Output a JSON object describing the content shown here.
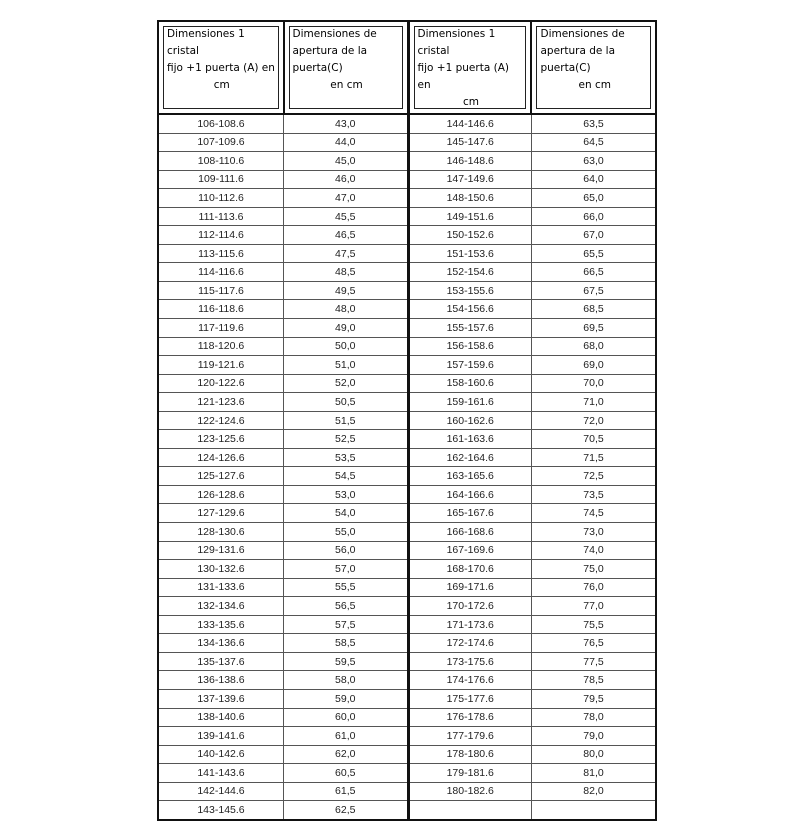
{
  "headers": [
    [
      "Dimensiones 1 cristal",
      "fijo +1 puerta (A) en",
      "cm"
    ],
    [
      "Dimensiones de",
      "apertura de la puerta(C)",
      "en cm"
    ],
    [
      "Dimensiones 1 cristal",
      "fijo +1 puerta (A) en",
      "cm"
    ],
    [
      "Dimensiones de",
      "apertura de la puerta(C)",
      "en cm"
    ]
  ],
  "left_rows": [
    [
      "106-108.6",
      "43,0"
    ],
    [
      "107-109.6",
      "44,0"
    ],
    [
      "108-110.6",
      "45,0"
    ],
    [
      "109-111.6",
      "46,0"
    ],
    [
      "110-112.6",
      "47,0"
    ],
    [
      "111-113.6",
      "45,5"
    ],
    [
      "112-114.6",
      "46,5"
    ],
    [
      "113-115.6",
      "47,5"
    ],
    [
      "114-116.6",
      "48,5"
    ],
    [
      "115-117.6",
      "49,5"
    ],
    [
      "116-118.6",
      "48,0"
    ],
    [
      "117-119.6",
      "49,0"
    ],
    [
      "118-120.6",
      "50,0"
    ],
    [
      "119-121.6",
      "51,0"
    ],
    [
      "120-122.6",
      "52,0"
    ],
    [
      "121-123.6",
      "50,5"
    ],
    [
      "122-124.6",
      "51,5"
    ],
    [
      "123-125.6",
      "52,5"
    ],
    [
      "124-126.6",
      "53,5"
    ],
    [
      "125-127.6",
      "54,5"
    ],
    [
      "126-128.6",
      "53,0"
    ],
    [
      "127-129.6",
      "54,0"
    ],
    [
      "128-130.6",
      "55,0"
    ],
    [
      "129-131.6",
      "56,0"
    ],
    [
      "130-132.6",
      "57,0"
    ],
    [
      "131-133.6",
      "55,5"
    ],
    [
      "132-134.6",
      "56,5"
    ],
    [
      "133-135.6",
      "57,5"
    ],
    [
      "134-136.6",
      "58,5"
    ],
    [
      "135-137.6",
      "59,5"
    ],
    [
      "136-138.6",
      "58,0"
    ],
    [
      "137-139.6",
      "59,0"
    ],
    [
      "138-140.6",
      "60,0"
    ],
    [
      "139-141.6",
      "61,0"
    ],
    [
      "140-142.6",
      "62,0"
    ],
    [
      "141-143.6",
      "60,5"
    ],
    [
      "142-144.6",
      "61,5"
    ],
    [
      "143-145.6",
      "62,5"
    ]
  ],
  "right_rows": [
    [
      "144-146.6",
      "63,5"
    ],
    [
      "145-147.6",
      "64,5"
    ],
    [
      "146-148.6",
      "63,0"
    ],
    [
      "147-149.6",
      "64,0"
    ],
    [
      "148-150.6",
      "65,0"
    ],
    [
      "149-151.6",
      "66,0"
    ],
    [
      "150-152.6",
      "67,0"
    ],
    [
      "151-153.6",
      "65,5"
    ],
    [
      "152-154.6",
      "66,5"
    ],
    [
      "153-155.6",
      "67,5"
    ],
    [
      "154-156.6",
      "68,5"
    ],
    [
      "155-157.6",
      "69,5"
    ],
    [
      "156-158.6",
      "68,0"
    ],
    [
      "157-159.6",
      "69,0"
    ],
    [
      "158-160.6",
      "70,0"
    ],
    [
      "159-161.6",
      "71,0"
    ],
    [
      "160-162.6",
      "72,0"
    ],
    [
      "161-163.6",
      "70,5"
    ],
    [
      "162-164.6",
      "71,5"
    ],
    [
      "163-165.6",
      "72,5"
    ],
    [
      "164-166.6",
      "73,5"
    ],
    [
      "165-167.6",
      "74,5"
    ],
    [
      "166-168.6",
      "73,0"
    ],
    [
      "167-169.6",
      "74,0"
    ],
    [
      "168-170.6",
      "75,0"
    ],
    [
      "169-171.6",
      "76,0"
    ],
    [
      "170-172.6",
      "77,0"
    ],
    [
      "171-173.6",
      "75,5"
    ],
    [
      "172-174.6",
      "76,5"
    ],
    [
      "173-175.6",
      "77,5"
    ],
    [
      "174-176.6",
      "78,5"
    ],
    [
      "175-177.6",
      "79,5"
    ],
    [
      "176-178.6",
      "78,0"
    ],
    [
      "177-179.6",
      "79,0"
    ],
    [
      "178-180.6",
      "80,0"
    ],
    [
      "179-181.6",
      "81,0"
    ],
    [
      "180-182.6",
      "82,0"
    ]
  ]
}
